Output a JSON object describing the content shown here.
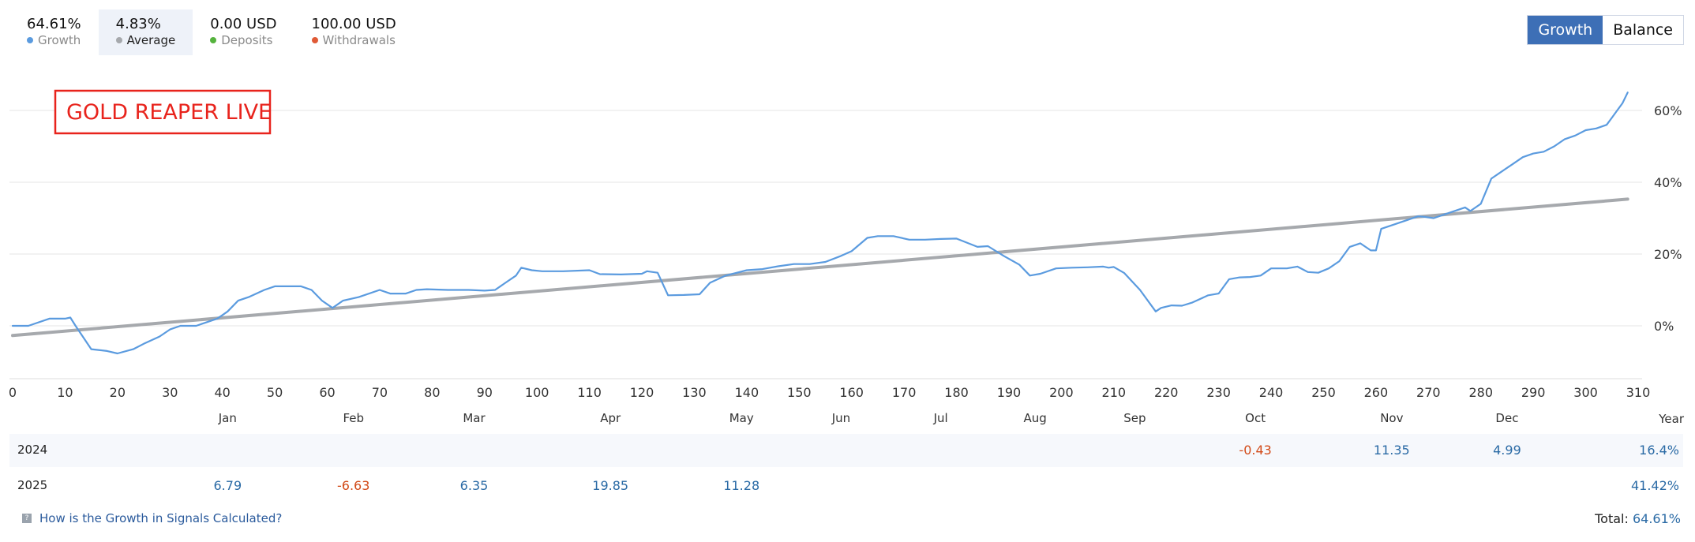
{
  "stats": [
    {
      "value": "64.61%",
      "label": "Growth",
      "color": "#5b9bdf"
    },
    {
      "value": "4.83%",
      "label": "Average",
      "color": "#a6a9ad"
    },
    {
      "value": "0.00 USD",
      "label": "Deposits",
      "color": "#55b33d"
    },
    {
      "value": "100.00 USD",
      "label": "Withdrawals",
      "color": "#e05a36"
    }
  ],
  "toggle": {
    "growth": "Growth",
    "balance": "Balance"
  },
  "chart_data": {
    "type": "line",
    "title": "GOLD REAPER LIVE",
    "xlabel": "",
    "ylabel": "",
    "xlim": [
      0,
      310
    ],
    "ylim": [
      -15,
      70
    ],
    "x_ticks": [
      0,
      10,
      20,
      30,
      40,
      50,
      60,
      70,
      80,
      90,
      100,
      110,
      120,
      130,
      140,
      150,
      160,
      170,
      180,
      190,
      200,
      210,
      220,
      230,
      240,
      250,
      260,
      270,
      280,
      290,
      300,
      310
    ],
    "y_ticks": [
      0,
      20,
      40,
      60
    ],
    "y_tick_labels": [
      "0%",
      "20%",
      "40%",
      "60%"
    ],
    "months": [
      {
        "label": "Jan",
        "x": 41
      },
      {
        "label": "Feb",
        "x": 65
      },
      {
        "label": "Mar",
        "x": 88
      },
      {
        "label": "Apr",
        "x": 114
      },
      {
        "label": "May",
        "x": 139
      },
      {
        "label": "Jun",
        "x": 158
      },
      {
        "label": "Jul",
        "x": 177
      },
      {
        "label": "Aug",
        "x": 195
      },
      {
        "label": "Sep",
        "x": 214
      },
      {
        "label": "Oct",
        "x": 237
      },
      {
        "label": "Nov",
        "x": 263
      },
      {
        "label": "Dec",
        "x": 285
      }
    ],
    "grid": true,
    "series": [
      {
        "name": "Growth",
        "color": "#5b9bdf",
        "x": [
          0,
          3,
          7,
          10,
          11,
          12,
          15,
          18,
          20,
          23,
          25,
          28,
          30,
          32,
          35,
          37,
          39,
          40,
          41,
          43,
          45,
          48,
          50,
          53,
          55,
          57,
          59,
          61,
          63,
          66,
          70,
          72,
          75,
          77,
          79,
          83,
          87,
          90,
          92,
          94,
          96,
          97,
          99,
          101,
          105,
          110,
          112,
          116,
          120,
          121,
          123,
          125,
          128,
          131,
          133,
          136,
          140,
          143,
          146,
          149,
          152,
          155,
          158,
          160,
          163,
          165,
          168,
          171,
          174,
          177,
          180,
          184,
          186,
          189,
          192,
          194,
          196,
          199,
          202,
          205,
          208,
          209,
          210,
          212,
          215,
          218,
          219,
          221,
          223,
          225,
          228,
          230,
          232,
          234,
          236,
          238,
          240,
          243,
          245,
          247,
          249,
          251,
          253,
          255,
          257,
          259,
          260,
          261,
          264,
          266,
          268,
          269,
          271,
          273,
          275,
          277,
          278,
          279,
          280,
          282,
          284,
          286,
          288,
          290,
          292,
          294,
          296,
          298,
          300,
          302,
          304,
          305,
          306,
          307,
          308
        ],
        "y": [
          0,
          0,
          2,
          2,
          2.3,
          0,
          -6.5,
          -7,
          -7.7,
          -6.5,
          -5,
          -3,
          -1,
          0,
          0,
          1,
          2,
          3,
          4,
          7,
          8,
          10,
          11,
          11,
          11,
          10,
          7,
          5,
          7,
          8,
          10,
          9,
          9,
          10,
          10.2,
          10,
          10,
          9.8,
          10,
          12,
          14,
          16.2,
          15.5,
          15.2,
          15.2,
          15.5,
          14.4,
          14.3,
          14.5,
          15.2,
          14.8,
          8.5,
          8.6,
          8.8,
          12,
          14,
          15.5,
          15.8,
          16.6,
          17.2,
          17.2,
          17.8,
          19.5,
          20.8,
          24.5,
          25,
          25,
          24,
          24,
          24.2,
          24.3,
          22,
          22.2,
          19.5,
          17,
          14,
          14.5,
          16,
          16.2,
          16.3,
          16.5,
          16.2,
          16.4,
          14.7,
          10,
          4,
          5,
          5.7,
          5.6,
          6.5,
          8.5,
          9,
          13,
          13.5,
          13.6,
          14,
          16,
          16,
          16.5,
          15,
          14.8,
          16,
          18,
          22,
          23,
          21,
          21,
          27,
          28.5,
          29.5,
          30.5,
          30.4,
          30,
          31,
          32,
          33,
          32,
          33,
          34,
          41,
          43,
          45,
          47,
          48,
          48.5,
          50,
          52,
          53,
          54.5,
          55,
          56,
          58,
          60,
          62,
          65
        ]
      },
      {
        "name": "Average",
        "color": "#a6a9ad",
        "x": [
          0,
          308
        ],
        "y": [
          -2.7,
          35.3
        ]
      }
    ]
  },
  "table": {
    "year_header": "Year",
    "rows": [
      {
        "year": "2024",
        "cells": [
          {
            "month_index": 9,
            "value": "-0.43",
            "sign": "neg"
          },
          {
            "month_index": 10,
            "value": "11.35",
            "sign": "pos"
          },
          {
            "month_index": 11,
            "value": "4.99",
            "sign": "pos"
          }
        ],
        "total": "16.4%"
      },
      {
        "year": "2025",
        "cells": [
          {
            "month_index": 0,
            "value": "6.79",
            "sign": "pos"
          },
          {
            "month_index": 1,
            "value": "-6.63",
            "sign": "neg"
          },
          {
            "month_index": 2,
            "value": "6.35",
            "sign": "pos"
          },
          {
            "month_index": 3,
            "value": "19.85",
            "sign": "pos"
          },
          {
            "month_index": 4,
            "value": "11.28",
            "sign": "pos"
          }
        ],
        "total": "41.42%"
      }
    ]
  },
  "footer": {
    "link": "How is the Growth in Signals Calculated?",
    "total_label": "Total:",
    "total_value": "64.61%"
  }
}
